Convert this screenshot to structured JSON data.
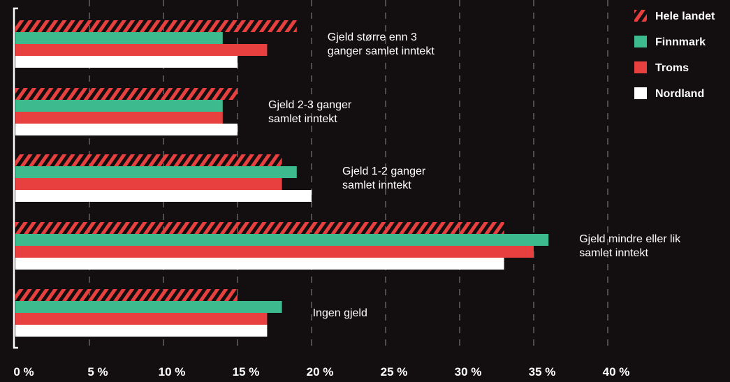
{
  "chart_data": {
    "type": "bar",
    "orientation": "horizontal",
    "title": "",
    "xlabel": "",
    "ylabel": "",
    "xlim": [
      0,
      40
    ],
    "x_ticks": [
      0,
      5,
      10,
      15,
      20,
      25,
      30,
      35,
      40
    ],
    "x_tick_labels": [
      "0 %",
      "5 %",
      "10 %",
      "15 %",
      "20 %",
      "25 %",
      "30 %",
      "35 %",
      "40 %"
    ],
    "grid": "vertical dashed",
    "legend_position": "top-right",
    "categories": [
      [
        "Gjeld større enn 3",
        "ganger samlet inntekt"
      ],
      [
        "Gjeld 2-3 ganger",
        "samlet inntekt"
      ],
      [
        "Gjeld 1-2 ganger",
        "samlet inntekt"
      ],
      [
        "Gjeld mindre eller lik",
        "samlet inntekt"
      ],
      [
        "Ingen gjeld"
      ]
    ],
    "series": [
      {
        "name": "Hele landet",
        "color": "#e8403f",
        "pattern": "hatched",
        "values": [
          19,
          15,
          18,
          33,
          15
        ]
      },
      {
        "name": "Finnmark",
        "color": "#3dbb8f",
        "pattern": "solid",
        "values": [
          14,
          14,
          19,
          36,
          18
        ]
      },
      {
        "name": "Troms",
        "color": "#e8403f",
        "pattern": "solid",
        "values": [
          17,
          14,
          18,
          35,
          17
        ]
      },
      {
        "name": "Nordland",
        "color": "#ffffff",
        "pattern": "solid",
        "values": [
          15,
          15,
          20,
          33,
          17
        ]
      }
    ]
  }
}
